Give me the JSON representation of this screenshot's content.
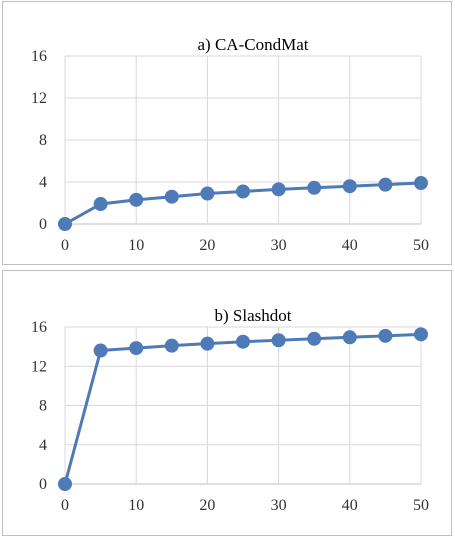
{
  "chart_data": [
    {
      "type": "line",
      "title": "a) CA-CondMat",
      "xlabel": "",
      "ylabel": "",
      "x": [
        0,
        5,
        10,
        15,
        20,
        25,
        30,
        35,
        40,
        45,
        50
      ],
      "series": [
        {
          "values": [
            0,
            1.9,
            2.3,
            2.6,
            2.9,
            3.1,
            3.3,
            3.45,
            3.6,
            3.75,
            3.9
          ]
        }
      ],
      "xticks": [
        "0",
        "10",
        "20",
        "30",
        "40",
        "50"
      ],
      "yticks": [
        "0",
        "4",
        "8",
        "12",
        "16"
      ],
      "xlim": [
        0,
        50
      ],
      "ylim": [
        0,
        16
      ],
      "grid": true,
      "line_color": "#4e7ab7"
    },
    {
      "type": "line",
      "title": "b) Slashdot",
      "xlabel": "",
      "ylabel": "",
      "x": [
        0,
        5,
        10,
        15,
        20,
        25,
        30,
        35,
        40,
        45,
        50
      ],
      "series": [
        {
          "values": [
            0,
            13.6,
            13.85,
            14.1,
            14.3,
            14.5,
            14.65,
            14.8,
            14.95,
            15.1,
            15.25
          ]
        }
      ],
      "xticks": [
        "0",
        "10",
        "20",
        "30",
        "40",
        "50"
      ],
      "yticks": [
        "0",
        "4",
        "8",
        "12",
        "16"
      ],
      "xlim": [
        0,
        50
      ],
      "ylim": [
        0,
        16
      ],
      "grid": true,
      "line_color": "#4e7ab7"
    }
  ]
}
